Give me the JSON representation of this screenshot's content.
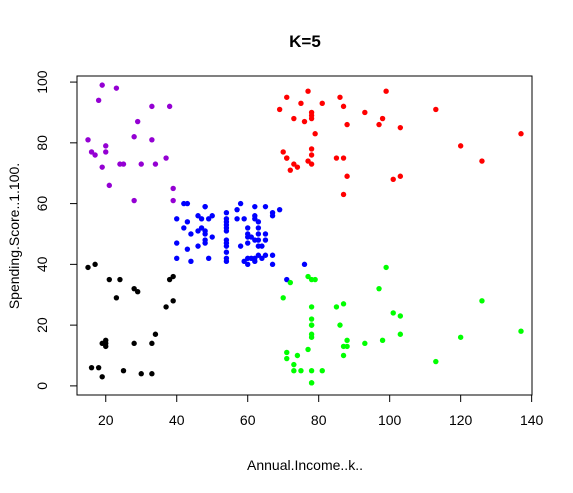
{
  "chart_data": {
    "type": "scatter",
    "title": "K=5",
    "xlabel": "Annual.Income..k..",
    "ylabel": "Spending.Score..1.100.",
    "xlim": [
      11.9,
      140.1
    ],
    "ylim": [
      -3,
      102
    ],
    "xticks": [
      20,
      40,
      60,
      80,
      100,
      120,
      140
    ],
    "yticks": [
      0,
      20,
      40,
      60,
      80,
      100
    ],
    "grid": false,
    "legend": "none",
    "series": [
      {
        "color": "#000000",
        "points": [
          [
            15,
            39
          ],
          [
            16,
            6
          ],
          [
            17,
            40
          ],
          [
            18,
            6
          ],
          [
            19,
            3
          ],
          [
            19,
            14
          ],
          [
            20,
            15
          ],
          [
            20,
            13
          ],
          [
            20,
            14
          ],
          [
            21,
            35
          ],
          [
            23,
            29
          ],
          [
            24,
            35
          ],
          [
            25,
            5
          ],
          [
            28,
            14
          ],
          [
            28,
            32
          ],
          [
            29,
            31
          ],
          [
            30,
            4
          ],
          [
            33,
            4
          ],
          [
            33,
            14
          ],
          [
            34,
            17
          ],
          [
            37,
            26
          ],
          [
            38,
            35
          ],
          [
            39,
            36
          ],
          [
            39,
            28
          ]
        ]
      },
      {
        "color": "#9400D3",
        "points": [
          [
            15,
            81
          ],
          [
            16,
            77
          ],
          [
            17,
            76
          ],
          [
            18,
            94
          ],
          [
            19,
            99
          ],
          [
            19,
            72
          ],
          [
            20,
            77
          ],
          [
            20,
            79
          ],
          [
            21,
            66
          ],
          [
            23,
            98
          ],
          [
            24,
            73
          ],
          [
            25,
            73
          ],
          [
            28,
            82
          ],
          [
            28,
            61
          ],
          [
            29,
            87
          ],
          [
            30,
            73
          ],
          [
            33,
            92
          ],
          [
            33,
            81
          ],
          [
            34,
            73
          ],
          [
            37,
            75
          ],
          [
            38,
            92
          ],
          [
            39,
            65
          ],
          [
            39,
            61
          ]
        ]
      },
      {
        "color": "#0000FF",
        "points": [
          [
            40,
            47
          ],
          [
            40,
            42
          ],
          [
            40,
            55
          ],
          [
            42,
            52
          ],
          [
            42,
            60
          ],
          [
            43,
            54
          ],
          [
            43,
            60
          ],
          [
            43,
            45
          ],
          [
            44,
            41
          ],
          [
            44,
            50
          ],
          [
            46,
            51
          ],
          [
            46,
            46
          ],
          [
            46,
            56
          ],
          [
            47,
            55
          ],
          [
            47,
            52
          ],
          [
            48,
            59
          ],
          [
            48,
            51
          ],
          [
            48,
            59
          ],
          [
            48,
            50
          ],
          [
            48,
            48
          ],
          [
            48,
            47
          ],
          [
            49,
            55
          ],
          [
            49,
            42
          ],
          [
            50,
            49
          ],
          [
            50,
            56
          ],
          [
            54,
            47
          ],
          [
            54,
            54
          ],
          [
            54,
            53
          ],
          [
            54,
            48
          ],
          [
            54,
            52
          ],
          [
            54,
            42
          ],
          [
            54,
            51
          ],
          [
            54,
            55
          ],
          [
            54,
            41
          ],
          [
            54,
            44
          ],
          [
            54,
            57
          ],
          [
            54,
            46
          ],
          [
            57,
            58
          ],
          [
            57,
            55
          ],
          [
            58,
            60
          ],
          [
            58,
            46
          ],
          [
            59,
            55
          ],
          [
            59,
            41
          ],
          [
            60,
            49
          ],
          [
            60,
            40
          ],
          [
            60,
            42
          ],
          [
            60,
            52
          ],
          [
            60,
            47
          ],
          [
            60,
            50
          ],
          [
            61,
            42
          ],
          [
            61,
            49
          ],
          [
            62,
            41
          ],
          [
            62,
            48
          ],
          [
            62,
            59
          ],
          [
            62,
            55
          ],
          [
            62,
            56
          ],
          [
            62,
            42
          ],
          [
            63,
            50
          ],
          [
            63,
            46
          ],
          [
            63,
            43
          ],
          [
            63,
            48
          ],
          [
            63,
            52
          ],
          [
            63,
            54
          ],
          [
            64,
            42
          ],
          [
            64,
            46
          ],
          [
            65,
            48
          ],
          [
            65,
            50
          ],
          [
            65,
            43
          ],
          [
            65,
            59
          ],
          [
            67,
            43
          ],
          [
            67,
            57
          ],
          [
            67,
            56
          ],
          [
            67,
            40
          ],
          [
            69,
            58
          ],
          [
            71,
            35
          ],
          [
            76,
            40
          ]
        ]
      },
      {
        "color": "#FF0000",
        "points": [
          [
            69,
            91
          ],
          [
            70,
            77
          ],
          [
            71,
            95
          ],
          [
            71,
            75
          ],
          [
            71,
            75
          ],
          [
            72,
            71
          ],
          [
            73,
            88
          ],
          [
            73,
            73
          ],
          [
            74,
            72
          ],
          [
            75,
            93
          ],
          [
            76,
            87
          ],
          [
            77,
            97
          ],
          [
            77,
            74
          ],
          [
            78,
            90
          ],
          [
            78,
            88
          ],
          [
            78,
            76
          ],
          [
            78,
            89
          ],
          [
            78,
            78
          ],
          [
            78,
            73
          ],
          [
            79,
            83
          ],
          [
            81,
            93
          ],
          [
            85,
            75
          ],
          [
            86,
            95
          ],
          [
            87,
            63
          ],
          [
            87,
            75
          ],
          [
            87,
            92
          ],
          [
            88,
            86
          ],
          [
            88,
            69
          ],
          [
            93,
            90
          ],
          [
            97,
            86
          ],
          [
            98,
            88
          ],
          [
            99,
            97
          ],
          [
            101,
            68
          ],
          [
            103,
            85
          ],
          [
            103,
            69
          ],
          [
            113,
            91
          ],
          [
            120,
            79
          ],
          [
            126,
            74
          ],
          [
            137,
            83
          ]
        ]
      },
      {
        "color": "#00FF00",
        "points": [
          [
            70,
            29
          ],
          [
            71,
            11
          ],
          [
            71,
            9
          ],
          [
            72,
            34
          ],
          [
            73,
            5
          ],
          [
            73,
            7
          ],
          [
            74,
            10
          ],
          [
            75,
            5
          ],
          [
            77,
            12
          ],
          [
            77,
            36
          ],
          [
            78,
            22
          ],
          [
            78,
            17
          ],
          [
            78,
            20
          ],
          [
            78,
            16
          ],
          [
            78,
            1
          ],
          [
            78,
            1
          ],
          [
            78,
            35
          ],
          [
            78,
            5
          ],
          [
            78,
            26
          ],
          [
            78,
            20
          ],
          [
            79,
            35
          ],
          [
            81,
            5
          ],
          [
            85,
            26
          ],
          [
            86,
            20
          ],
          [
            87,
            27
          ],
          [
            87,
            13
          ],
          [
            87,
            10
          ],
          [
            88,
            13
          ],
          [
            88,
            15
          ],
          [
            93,
            14
          ],
          [
            97,
            32
          ],
          [
            98,
            15
          ],
          [
            99,
            39
          ],
          [
            101,
            24
          ],
          [
            103,
            17
          ],
          [
            103,
            23
          ],
          [
            113,
            8
          ],
          [
            120,
            16
          ],
          [
            126,
            28
          ],
          [
            137,
            18
          ]
        ]
      }
    ]
  }
}
